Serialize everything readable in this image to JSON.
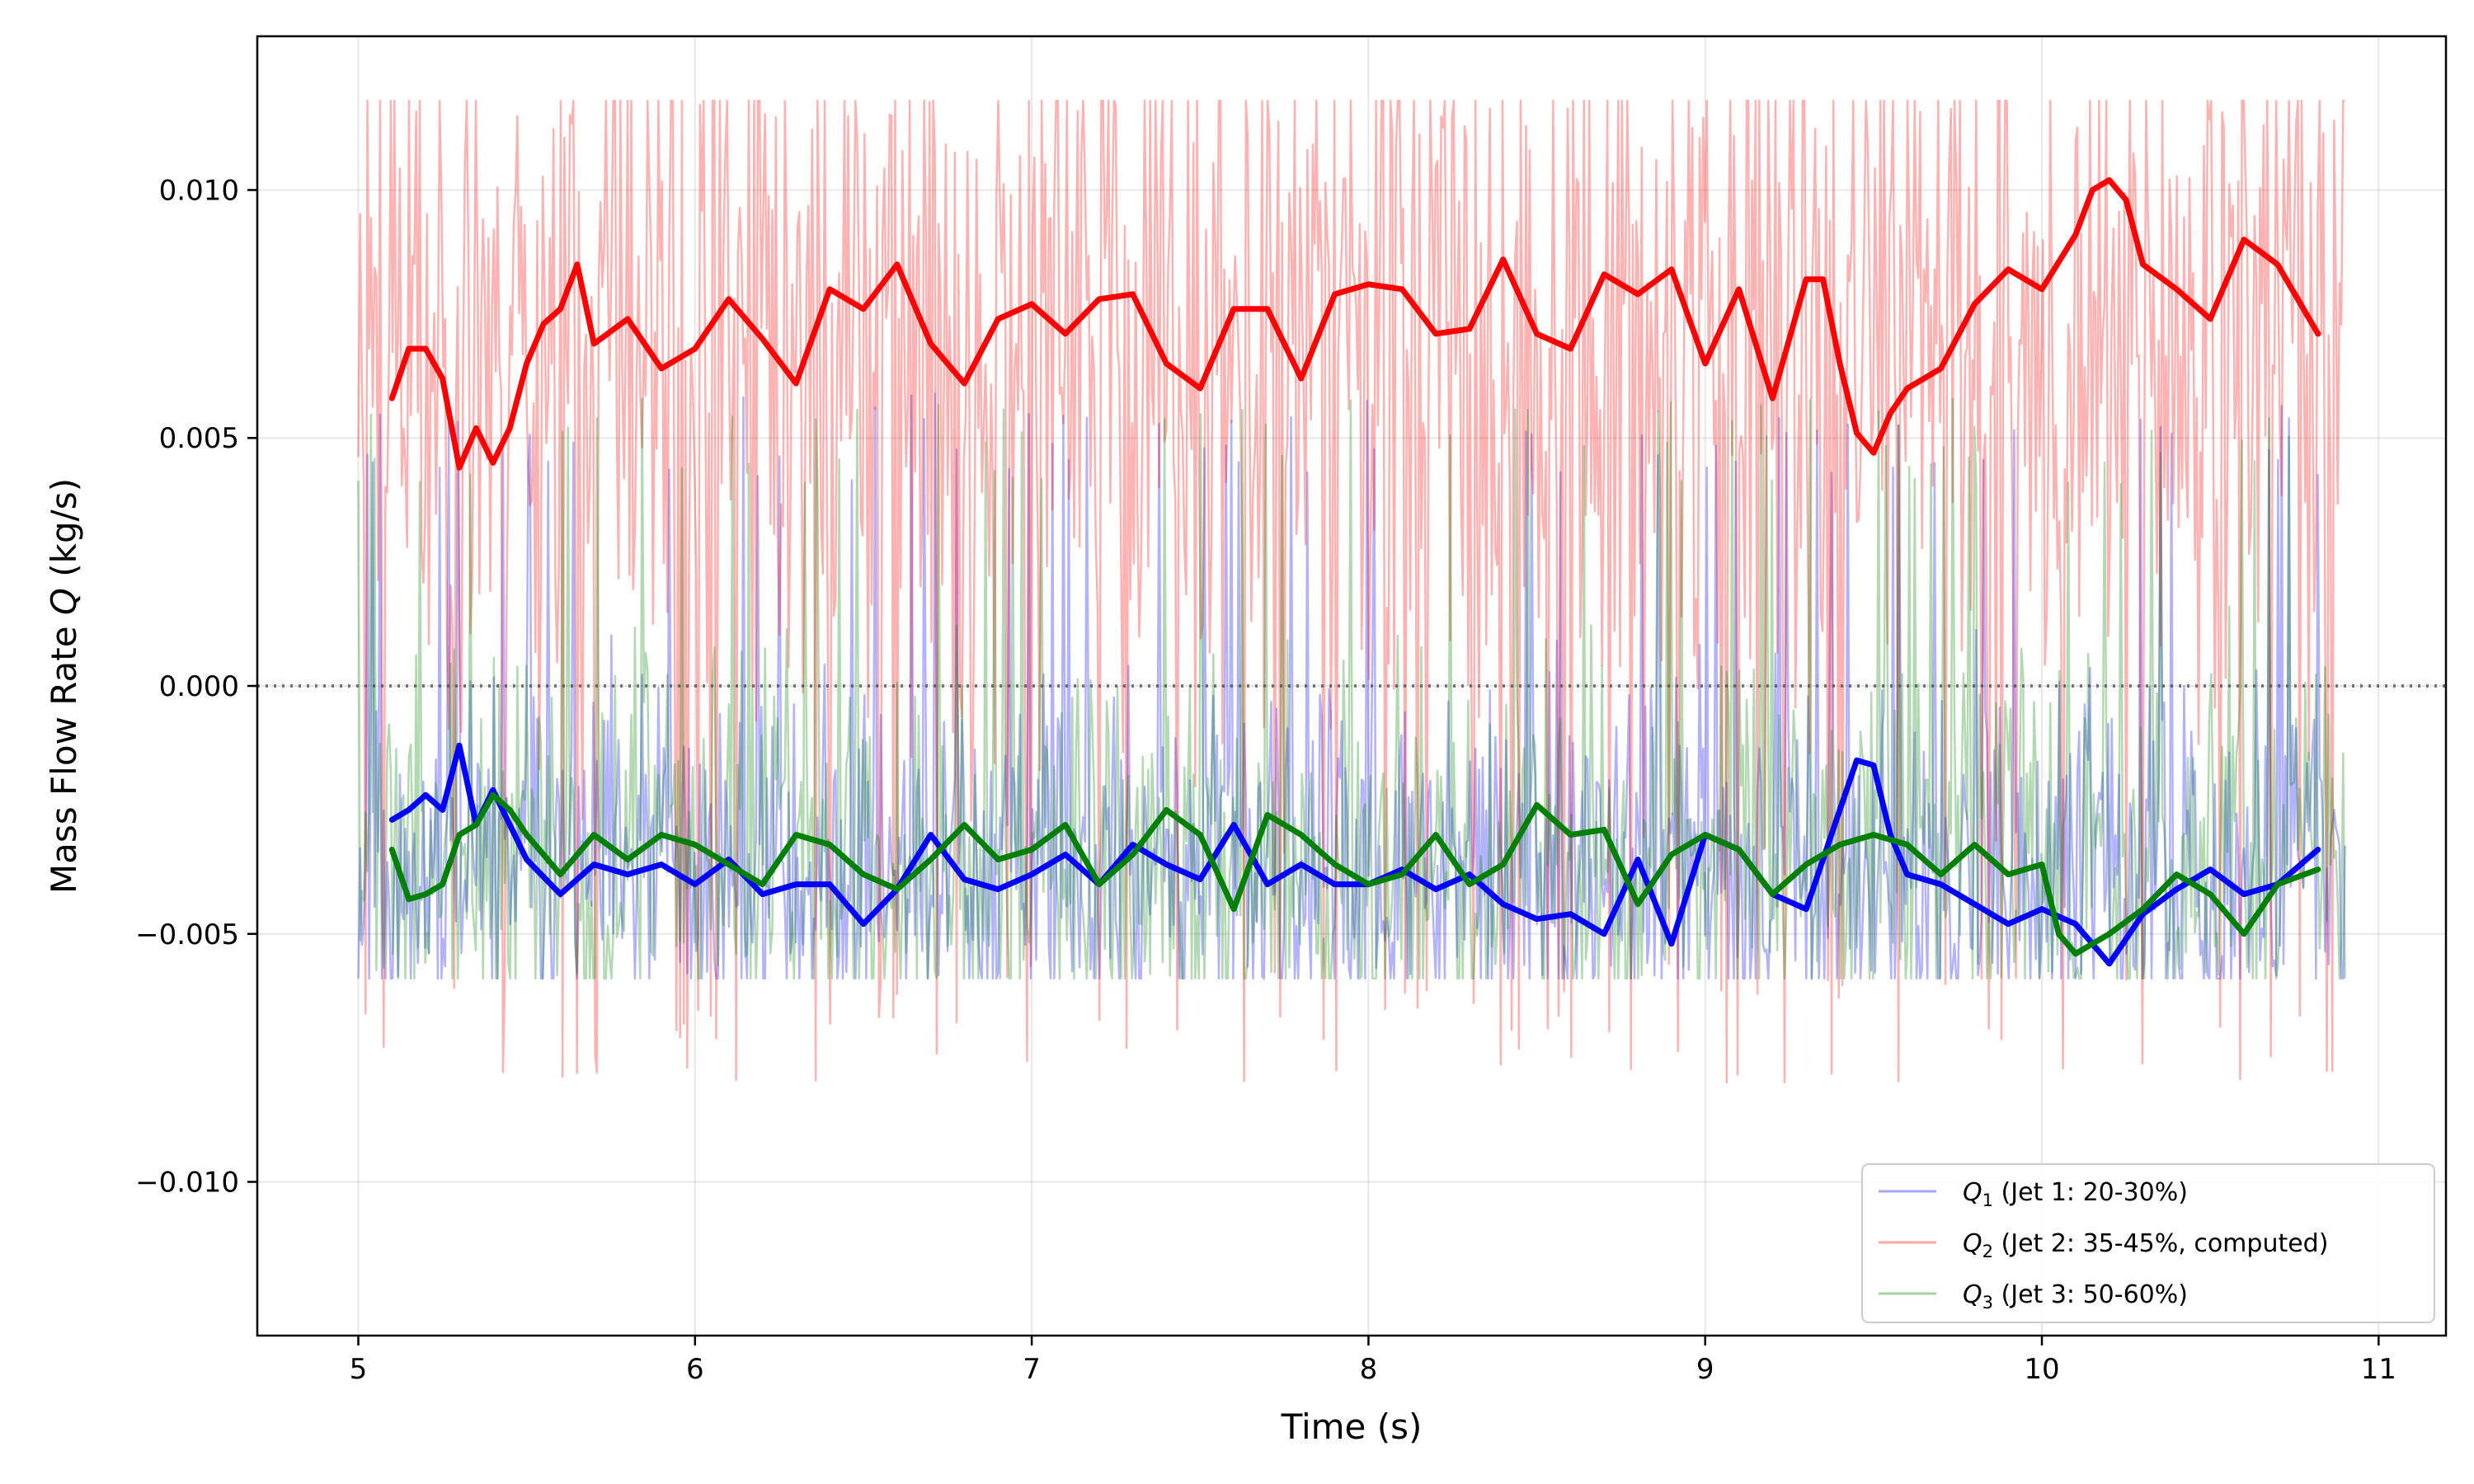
{
  "chart_data": {
    "type": "line",
    "title": "",
    "xlabel": "Time (s)",
    "ylabel_prefix": "Mass Flow Rate ",
    "ylabel_var": "Q",
    "ylabel_suffix": " (kg/s)",
    "xlim": [
      4.7,
      11.2
    ],
    "ylim": [
      -0.0131,
      0.0131
    ],
    "xticks": [
      5,
      6,
      7,
      8,
      9,
      10,
      11
    ],
    "xtick_labels": [
      "5",
      "6",
      "7",
      "8",
      "9",
      "10",
      "11"
    ],
    "yticks": [
      -0.01,
      -0.005,
      0.0,
      0.005,
      0.01
    ],
    "ytick_labels": [
      "−0.010",
      "−0.005",
      "0.000",
      "0.005",
      "0.010"
    ],
    "grid": true,
    "zero_line": true,
    "legend_position": "lower-right",
    "series": [
      {
        "name": "Q1",
        "legend_var": "Q",
        "legend_sub": "1",
        "legend_rest": " (Jet 1: 20-30%)",
        "color": "#0000ff",
        "raw": {
          "t_start": 5.0,
          "t_end": 10.9,
          "base": -0.0038,
          "noise": 0.0018,
          "clip_low": -0.0059,
          "clip_high": 0.0059,
          "spike_prob": 0.05,
          "spike_level": 0.0059,
          "seed": 11
        },
        "smoothed": {
          "x": [
            5.1,
            5.15,
            5.2,
            5.25,
            5.3,
            5.35,
            5.4,
            5.5,
            5.6,
            5.7,
            5.8,
            5.9,
            6.0,
            6.1,
            6.2,
            6.3,
            6.4,
            6.5,
            6.6,
            6.7,
            6.8,
            6.9,
            7.0,
            7.1,
            7.2,
            7.3,
            7.4,
            7.5,
            7.6,
            7.7,
            7.8,
            7.9,
            8.0,
            8.1,
            8.2,
            8.3,
            8.4,
            8.5,
            8.6,
            8.7,
            8.8,
            8.9,
            9.0,
            9.1,
            9.2,
            9.3,
            9.4,
            9.45,
            9.5,
            9.55,
            9.6,
            9.7,
            9.8,
            9.9,
            10.0,
            10.1,
            10.2,
            10.3,
            10.4,
            10.5,
            10.6,
            10.7,
            10.82
          ],
          "y": [
            -0.0027,
            -0.0025,
            -0.0022,
            -0.0025,
            -0.0012,
            -0.0028,
            -0.0021,
            -0.0035,
            -0.0042,
            -0.0036,
            -0.0038,
            -0.0036,
            -0.004,
            -0.0035,
            -0.0042,
            -0.004,
            -0.004,
            -0.0048,
            -0.0041,
            -0.003,
            -0.0039,
            -0.0041,
            -0.0038,
            -0.0034,
            -0.004,
            -0.0032,
            -0.0036,
            -0.0039,
            -0.0028,
            -0.004,
            -0.0036,
            -0.004,
            -0.004,
            -0.0037,
            -0.0041,
            -0.0038,
            -0.0044,
            -0.0047,
            -0.0046,
            -0.005,
            -0.0035,
            -0.0052,
            -0.003,
            -0.0033,
            -0.0042,
            -0.0045,
            -0.0025,
            -0.0015,
            -0.0016,
            -0.003,
            -0.0038,
            -0.004,
            -0.0044,
            -0.0048,
            -0.0045,
            -0.0048,
            -0.0056,
            -0.0046,
            -0.0041,
            -0.0037,
            -0.0042,
            -0.004,
            -0.0033
          ]
        }
      },
      {
        "name": "Q2",
        "legend_var": "Q",
        "legend_sub": "2",
        "legend_rest": " (Jet 2: 35-45%, computed)",
        "color": "#ff0000",
        "raw": {
          "t_start": 5.0,
          "t_end": 10.9,
          "base": 0.0072,
          "noise": 0.004,
          "clip_low": -0.0119,
          "clip_high": 0.0118,
          "spike_prob": 0.06,
          "spike_level": -0.008,
          "seed": 23
        },
        "smoothed": {
          "x": [
            5.1,
            5.15,
            5.2,
            5.25,
            5.3,
            5.35,
            5.4,
            5.45,
            5.5,
            5.55,
            5.6,
            5.65,
            5.7,
            5.8,
            5.9,
            6.0,
            6.1,
            6.2,
            6.3,
            6.4,
            6.5,
            6.6,
            6.7,
            6.8,
            6.9,
            7.0,
            7.1,
            7.2,
            7.3,
            7.4,
            7.5,
            7.6,
            7.7,
            7.8,
            7.9,
            8.0,
            8.1,
            8.2,
            8.3,
            8.4,
            8.5,
            8.6,
            8.7,
            8.8,
            8.9,
            9.0,
            9.1,
            9.2,
            9.3,
            9.35,
            9.4,
            9.45,
            9.5,
            9.55,
            9.6,
            9.7,
            9.8,
            9.9,
            10.0,
            10.1,
            10.15,
            10.2,
            10.25,
            10.3,
            10.4,
            10.5,
            10.6,
            10.7,
            10.82
          ],
          "y": [
            0.0058,
            0.0068,
            0.0068,
            0.0062,
            0.0044,
            0.0052,
            0.0045,
            0.0052,
            0.0065,
            0.0073,
            0.0076,
            0.0085,
            0.0069,
            0.0074,
            0.0064,
            0.0068,
            0.0078,
            0.007,
            0.0061,
            0.008,
            0.0076,
            0.0085,
            0.0069,
            0.0061,
            0.0074,
            0.0077,
            0.0071,
            0.0078,
            0.0079,
            0.0065,
            0.006,
            0.0076,
            0.0076,
            0.0062,
            0.0079,
            0.0081,
            0.008,
            0.0071,
            0.0072,
            0.0086,
            0.0071,
            0.0068,
            0.0083,
            0.0079,
            0.0084,
            0.0065,
            0.008,
            0.0058,
            0.0082,
            0.0082,
            0.0065,
            0.0051,
            0.0047,
            0.0055,
            0.006,
            0.0064,
            0.0077,
            0.0084,
            0.008,
            0.0091,
            0.01,
            0.0102,
            0.0098,
            0.0085,
            0.008,
            0.0074,
            0.009,
            0.0085,
            0.0071
          ]
        }
      },
      {
        "name": "Q3",
        "legend_var": "Q",
        "legend_sub": "3",
        "legend_rest": " (Jet 3: 50-60%)",
        "color": "#008000",
        "raw": {
          "t_start": 5.0,
          "t_end": 10.9,
          "base": -0.0036,
          "noise": 0.002,
          "clip_low": -0.0059,
          "clip_high": 0.0059,
          "spike_prob": 0.05,
          "spike_level": 0.0058,
          "seed": 37
        },
        "smoothed": {
          "x": [
            5.1,
            5.15,
            5.2,
            5.25,
            5.3,
            5.35,
            5.4,
            5.45,
            5.5,
            5.6,
            5.7,
            5.8,
            5.9,
            6.0,
            6.1,
            6.2,
            6.3,
            6.4,
            6.5,
            6.6,
            6.7,
            6.8,
            6.9,
            7.0,
            7.1,
            7.2,
            7.3,
            7.4,
            7.5,
            7.6,
            7.7,
            7.8,
            7.9,
            8.0,
            8.1,
            8.2,
            8.3,
            8.4,
            8.5,
            8.6,
            8.7,
            8.8,
            8.9,
            9.0,
            9.1,
            9.2,
            9.3,
            9.4,
            9.5,
            9.6,
            9.7,
            9.8,
            9.9,
            10.0,
            10.05,
            10.1,
            10.2,
            10.3,
            10.4,
            10.5,
            10.6,
            10.7,
            10.82
          ],
          "y": [
            -0.0033,
            -0.0043,
            -0.0042,
            -0.004,
            -0.003,
            -0.0028,
            -0.0022,
            -0.0025,
            -0.003,
            -0.0038,
            -0.003,
            -0.0035,
            -0.003,
            -0.0032,
            -0.0036,
            -0.004,
            -0.003,
            -0.0032,
            -0.0038,
            -0.0041,
            -0.0035,
            -0.0028,
            -0.0035,
            -0.0033,
            -0.0028,
            -0.004,
            -0.0034,
            -0.0025,
            -0.003,
            -0.0045,
            -0.0026,
            -0.003,
            -0.0036,
            -0.004,
            -0.0038,
            -0.003,
            -0.004,
            -0.0036,
            -0.0024,
            -0.003,
            -0.0029,
            -0.0044,
            -0.0034,
            -0.003,
            -0.0033,
            -0.0042,
            -0.0036,
            -0.0032,
            -0.003,
            -0.0032,
            -0.0038,
            -0.0032,
            -0.0038,
            -0.0036,
            -0.005,
            -0.0054,
            -0.005,
            -0.0045,
            -0.0038,
            -0.0042,
            -0.005,
            -0.004,
            -0.0037
          ]
        }
      }
    ]
  }
}
